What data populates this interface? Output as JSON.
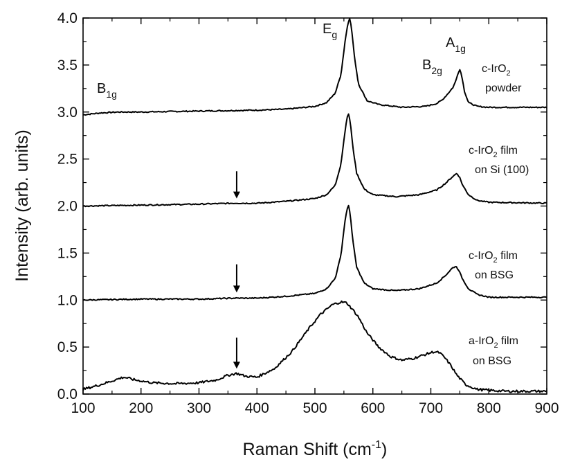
{
  "chart_data": {
    "type": "line",
    "xlabel": {
      "text": "Raman Shift (cm",
      "sup": "-1",
      "suffix": ")"
    },
    "ylabel": "Intensity (arb. units)",
    "xlim": [
      100,
      900
    ],
    "ylim": [
      0.0,
      4.0
    ],
    "x_ticks": [
      "100",
      "200",
      "300",
      "400",
      "500",
      "600",
      "700",
      "800",
      "900"
    ],
    "y_ticks": [
      "0.0",
      "0.5",
      "1.0",
      "1.5",
      "2.0",
      "2.5",
      "3.0",
      "3.5",
      "4.0"
    ],
    "grid": false,
    "line_color": "#000000",
    "series": [
      {
        "x": [
          100,
          130,
          160,
          200,
          300,
          400,
          450,
          500,
          520,
          535,
          545,
          552,
          557,
          560,
          563,
          568,
          575,
          590,
          610,
          650,
          690,
          710,
          720,
          730,
          738,
          743,
          747,
          750,
          753,
          758,
          765,
          780,
          800,
          900
        ],
        "y": [
          2.97,
          2.99,
          3.0,
          3.0,
          3.01,
          3.02,
          3.03,
          3.06,
          3.1,
          3.2,
          3.4,
          3.75,
          3.95,
          4.0,
          3.9,
          3.6,
          3.3,
          3.12,
          3.08,
          3.05,
          3.06,
          3.09,
          3.13,
          3.2,
          3.26,
          3.33,
          3.42,
          3.45,
          3.4,
          3.22,
          3.1,
          3.06,
          3.05,
          3.05
        ]
      },
      {
        "x": [
          100,
          200,
          300,
          360,
          400,
          450,
          500,
          520,
          535,
          545,
          551,
          555,
          558,
          561,
          565,
          572,
          585,
          600,
          640,
          680,
          710,
          725,
          737,
          745,
          750,
          755,
          765,
          780,
          800,
          900
        ],
        "y": [
          2.0,
          2.01,
          2.02,
          2.03,
          2.03,
          2.05,
          2.08,
          2.12,
          2.22,
          2.45,
          2.75,
          2.93,
          2.98,
          2.9,
          2.65,
          2.35,
          2.18,
          2.12,
          2.1,
          2.12,
          2.17,
          2.24,
          2.31,
          2.35,
          2.3,
          2.22,
          2.12,
          2.06,
          2.04,
          2.03
        ]
      },
      {
        "x": [
          100,
          200,
          300,
          360,
          400,
          450,
          500,
          520,
          535,
          545,
          551,
          555,
          558,
          561,
          565,
          572,
          585,
          600,
          640,
          680,
          710,
          725,
          737,
          743,
          748,
          755,
          765,
          780,
          800,
          900
        ],
        "y": [
          1.0,
          1.01,
          1.01,
          1.02,
          1.02,
          1.04,
          1.07,
          1.12,
          1.23,
          1.48,
          1.8,
          1.96,
          2.0,
          1.92,
          1.65,
          1.35,
          1.18,
          1.12,
          1.1,
          1.12,
          1.18,
          1.26,
          1.34,
          1.36,
          1.32,
          1.22,
          1.12,
          1.06,
          1.03,
          1.03
        ]
      },
      {
        "x": [
          100,
          130,
          150,
          170,
          190,
          220,
          260,
          300,
          330,
          350,
          365,
          380,
          400,
          430,
          460,
          490,
          510,
          530,
          545,
          555,
          565,
          575,
          590,
          610,
          630,
          650,
          670,
          690,
          705,
          715,
          725,
          735,
          745,
          760,
          780,
          800,
          830,
          900
        ],
        "y": [
          0.05,
          0.1,
          0.14,
          0.18,
          0.15,
          0.12,
          0.11,
          0.12,
          0.15,
          0.2,
          0.22,
          0.19,
          0.18,
          0.27,
          0.45,
          0.7,
          0.85,
          0.95,
          0.98,
          0.97,
          0.9,
          0.82,
          0.65,
          0.5,
          0.4,
          0.36,
          0.38,
          0.42,
          0.45,
          0.44,
          0.38,
          0.3,
          0.2,
          0.1,
          0.05,
          0.04,
          0.03,
          0.03
        ]
      }
    ],
    "peak_labels": [
      {
        "base": "E",
        "sub": "g"
      },
      {
        "base": "A",
        "sub": "1g"
      },
      {
        "base": "B",
        "sub": "2g"
      },
      {
        "base": "B",
        "sub": "1g"
      }
    ],
    "sample_labels": [
      {
        "line1": {
          "text": "c-IrO",
          "sub": "2",
          "rest": ""
        },
        "line2": "powder"
      },
      {
        "line1": {
          "text": "c-IrO",
          "sub": "2",
          "rest": " film"
        },
        "line2": "on Si (100)"
      },
      {
        "line1": {
          "text": "c-IrO",
          "sub": "2",
          "rest": " film"
        },
        "line2": "on BSG"
      },
      {
        "line1": {
          "text": "a-IrO",
          "sub": "2",
          "rest": " film"
        },
        "line2": "on BSG"
      }
    ],
    "arrows": [
      {
        "x": 365,
        "y_top": 2.37,
        "y_bottom": 2.08
      },
      {
        "x": 365,
        "y_top": 1.38,
        "y_bottom": 1.08
      },
      {
        "x": 365,
        "y_top": 0.6,
        "y_bottom": 0.27
      }
    ]
  }
}
